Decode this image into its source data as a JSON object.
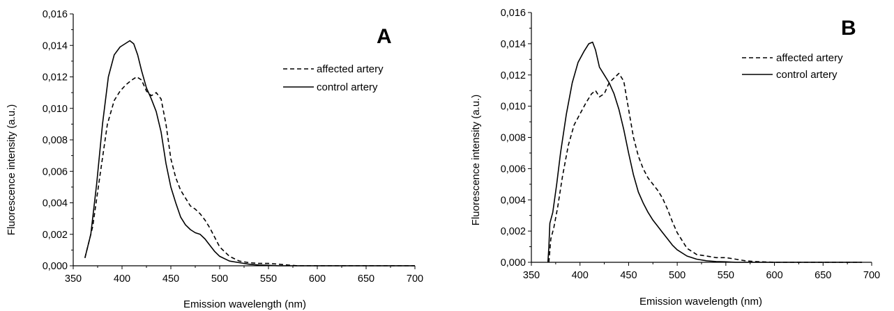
{
  "chart_data": [
    {
      "type": "line",
      "panel_label": "A",
      "xlabel": "Emission wavelength (nm)",
      "ylabel": "Fluorescence intensity (a.u.)",
      "xlim": [
        350,
        700
      ],
      "ylim": [
        0,
        0.016
      ],
      "x_ticks": [
        350,
        400,
        450,
        500,
        550,
        600,
        650,
        700
      ],
      "x_tick_labels": [
        "350",
        "400",
        "450",
        "500",
        "550",
        "600",
        "650",
        "700"
      ],
      "y_ticks": [
        0,
        0.002,
        0.004,
        0.006,
        0.008,
        0.01,
        0.012,
        0.014,
        0.016
      ],
      "y_tick_labels": [
        "0,000",
        "0,002",
        "0,004",
        "0,006",
        "0,008",
        "0,010",
        "0,012",
        "0,014",
        "0,016"
      ],
      "legend_position": "right",
      "series": [
        {
          "name": "affected artery",
          "style": "dashed",
          "x": [
            362,
            370,
            378,
            385,
            392,
            398,
            404,
            410,
            415,
            420,
            425,
            430,
            435,
            440,
            445,
            450,
            455,
            460,
            465,
            470,
            475,
            480,
            485,
            490,
            495,
            500,
            510,
            520,
            530,
            540,
            550,
            560,
            570,
            580,
            600,
            650,
            700
          ],
          "y": [
            0.0005,
            0.0025,
            0.006,
            0.009,
            0.0105,
            0.0111,
            0.0115,
            0.0118,
            0.012,
            0.0118,
            0.0111,
            0.0108,
            0.011,
            0.0106,
            0.009,
            0.0068,
            0.0056,
            0.0048,
            0.0043,
            0.0038,
            0.0036,
            0.0033,
            0.0029,
            0.0024,
            0.0018,
            0.0012,
            0.0006,
            0.0003,
            0.0002,
            0.00015,
            0.00015,
            0.0001,
            5e-05,
            0.0,
            0.0,
            0.0,
            0.0
          ]
        },
        {
          "name": "control artery",
          "style": "solid",
          "x": [
            362,
            368,
            374,
            380,
            386,
            392,
            398,
            403,
            408,
            412,
            416,
            420,
            425,
            430,
            435,
            440,
            445,
            450,
            455,
            460,
            465,
            470,
            475,
            480,
            485,
            490,
            495,
            500,
            510,
            520,
            530,
            540,
            550,
            560,
            570,
            580,
            600,
            650,
            700
          ],
          "y": [
            0.0005,
            0.002,
            0.0052,
            0.009,
            0.012,
            0.0134,
            0.0139,
            0.0141,
            0.0143,
            0.0141,
            0.0134,
            0.0124,
            0.0113,
            0.0106,
            0.0098,
            0.0085,
            0.0065,
            0.005,
            0.004,
            0.0031,
            0.0026,
            0.0023,
            0.0021,
            0.002,
            0.0017,
            0.0013,
            0.0009,
            0.0006,
            0.0003,
            0.0002,
            0.0001,
            5e-05,
            3e-05,
            0.0,
            0.0,
            0.0,
            0.0,
            0.0,
            0.0
          ]
        }
      ]
    },
    {
      "type": "line",
      "panel_label": "B",
      "xlabel": "Emission wavelength (nm)",
      "ylabel": "Fluorescence intensity (a.u.)",
      "xlim": [
        350,
        700
      ],
      "ylim": [
        0,
        0.016
      ],
      "x_ticks": [
        350,
        400,
        450,
        500,
        550,
        600,
        650,
        700
      ],
      "x_tick_labels": [
        "350",
        "400",
        "450",
        "500",
        "550",
        "600",
        "650",
        "700"
      ],
      "y_ticks": [
        0,
        0.002,
        0.004,
        0.006,
        0.008,
        0.01,
        0.012,
        0.014,
        0.016
      ],
      "y_tick_labels": [
        "0,000",
        "0,002",
        "0,004",
        "0,006",
        "0,008",
        "0,010",
        "0,012",
        "0,014",
        "0,016"
      ],
      "legend_position": "top-right",
      "series": [
        {
          "name": "affected artery",
          "style": "dashed",
          "x": [
            368,
            370,
            373,
            377,
            382,
            388,
            394,
            400,
            406,
            412,
            416,
            420,
            425,
            430,
            435,
            440,
            445,
            450,
            455,
            460,
            465,
            470,
            475,
            480,
            485,
            490,
            495,
            500,
            510,
            520,
            530,
            540,
            550,
            560,
            570,
            580,
            600,
            650,
            690
          ],
          "y": [
            0.0,
            0.0015,
            0.0022,
            0.0035,
            0.0055,
            0.0075,
            0.0088,
            0.0095,
            0.0102,
            0.0108,
            0.011,
            0.0106,
            0.0108,
            0.0115,
            0.0118,
            0.0121,
            0.0116,
            0.0098,
            0.008,
            0.0068,
            0.006,
            0.0054,
            0.005,
            0.0046,
            0.0041,
            0.0034,
            0.0026,
            0.0019,
            0.0009,
            0.0005,
            0.0004,
            0.0003,
            0.0003,
            0.0002,
            0.0001,
            5e-05,
            0.0,
            0.0,
            0.0
          ]
        },
        {
          "name": "control artery",
          "style": "solid",
          "x": [
            367,
            368,
            369,
            372,
            376,
            380,
            386,
            392,
            398,
            404,
            409,
            413,
            416,
            420,
            425,
            430,
            435,
            440,
            445,
            450,
            455,
            460,
            465,
            470,
            475,
            480,
            485,
            490,
            495,
            500,
            510,
            520,
            530,
            540,
            550,
            560,
            570,
            580,
            600,
            650,
            690
          ],
          "y": [
            0.0,
            0.001,
            0.0025,
            0.0032,
            0.005,
            0.007,
            0.0095,
            0.0115,
            0.0128,
            0.0135,
            0.014,
            0.0141,
            0.0136,
            0.0125,
            0.012,
            0.0115,
            0.0108,
            0.0098,
            0.0085,
            0.007,
            0.0056,
            0.0045,
            0.0038,
            0.0032,
            0.0027,
            0.0023,
            0.0019,
            0.0015,
            0.0011,
            0.0008,
            0.0004,
            0.0002,
            0.0001,
            5e-05,
            3e-05,
            0.0,
            0.0,
            0.0,
            0.0,
            0.0,
            0.0
          ]
        }
      ]
    }
  ]
}
